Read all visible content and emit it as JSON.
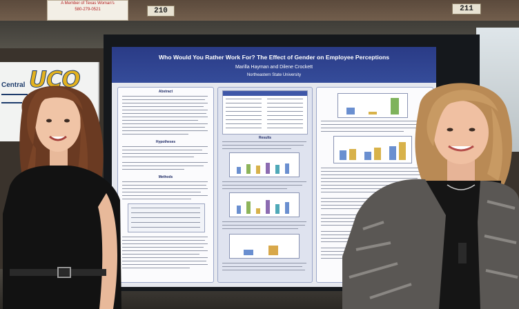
{
  "scene": {
    "room_numbers": [
      "210",
      "211"
    ],
    "flyer_lines": [
      "A Member of Texas Woman's",
      "580-279-0521"
    ],
    "banner": {
      "logo": "UCO",
      "word": "Central"
    },
    "poster": {
      "title": "Who Would You Rather Work For? The Effect of Gender on Employee Perceptions",
      "authors": "Marilla Hayman and Dilene Crockett",
      "affiliation": "Northeastern State University",
      "sections": {
        "abstract": "Abstract",
        "hypotheses": "Hypotheses",
        "methods": "Methods",
        "results": "Results"
      }
    },
    "colors": {
      "poster_header": "#2f4390",
      "panel_border": "#9aa6c8",
      "logo_gold": "#e3b21f",
      "logo_blue": "#1d3b6b"
    }
  }
}
